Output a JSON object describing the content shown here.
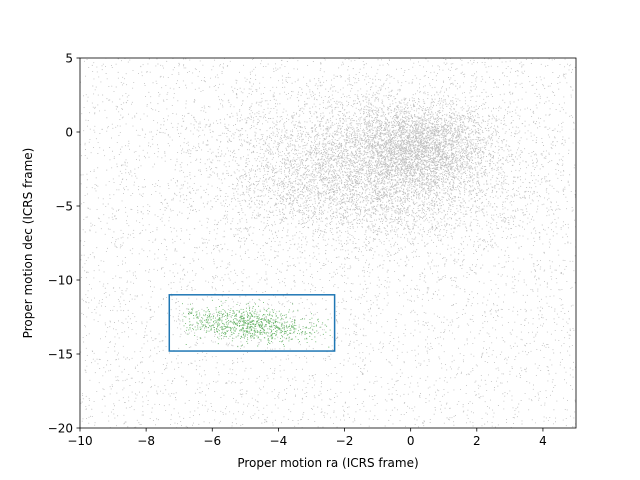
{
  "chart_data": {
    "type": "scatter",
    "title": "",
    "xlabel": "Proper motion ra (ICRS frame)",
    "ylabel": "Proper motion dec (ICRS frame)",
    "xlim": [
      -10,
      5
    ],
    "ylim": [
      -20,
      5
    ],
    "xticks": [
      -10,
      -8,
      -6,
      -4,
      -2,
      0,
      2,
      4
    ],
    "xtick_labels": [
      "−10",
      "−8",
      "−6",
      "−4",
      "−2",
      "0",
      "2",
      "4"
    ],
    "yticks": [
      -20,
      -15,
      -10,
      -5,
      0,
      5
    ],
    "ytick_labels": [
      "−20",
      "−15",
      "−10",
      "−5",
      "0",
      "5"
    ],
    "grid": false,
    "legend": "none",
    "series": [
      {
        "color": "#000000",
        "marker_alpha": 0.25,
        "approx_count": 14000,
        "distribution": {
          "components": [
            {
              "weight": 0.45,
              "center": [
                -1.2,
                -2.6
              ],
              "spread": [
                2.3,
                2.6
              ]
            },
            {
              "weight": 0.18,
              "center": [
                0.3,
                -0.8
              ],
              "spread": [
                1.0,
                1.4
              ]
            },
            {
              "weight": 0.37,
              "uniform": true
            }
          ]
        }
      },
      {
        "color": "#008000",
        "marker_alpha": 0.6,
        "approx_count": 900,
        "distribution": {
          "center": [
            -4.9,
            -13.0
          ],
          "spread": [
            1.1,
            0.55
          ],
          "bounds": {
            "x": [
              -6.9,
              -2.4
            ],
            "y": [
              -14.6,
              -11.3
            ]
          }
        }
      }
    ],
    "selection_box": {
      "x": [
        -7.3,
        -2.3
      ],
      "y": [
        -14.8,
        -11.0
      ],
      "color": "#1f77b4"
    }
  }
}
